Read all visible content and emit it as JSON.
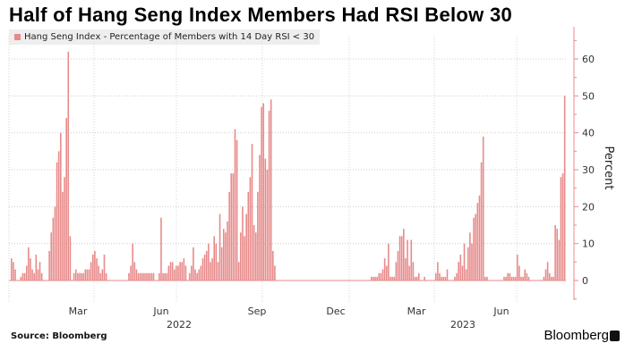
{
  "chart_data": {
    "type": "bar",
    "title": "Half of Hang Seng Index Members Had RSI Below 30",
    "legend": "Hang Seng Index - Percentage of Members with 14 Day RSI < 30",
    "ylabel": "Percent",
    "ylim": [
      -5,
      68
    ],
    "yticks": [
      "0",
      "10",
      "20",
      "30",
      "40",
      "50",
      "60"
    ],
    "ytick_values": [
      0,
      10,
      20,
      30,
      40,
      50,
      60
    ],
    "xticks": [
      "Mar",
      "Jun",
      "Sep",
      "Dec",
      "Mar",
      "Jun"
    ],
    "year_labels": [
      "2022",
      "2023"
    ],
    "color": "#e88a8a",
    "x_start": "2022-01",
    "x_end": "2023-08",
    "values": [
      6,
      5,
      3,
      0,
      0,
      1,
      2,
      2,
      4,
      9,
      6,
      3,
      2,
      7,
      3,
      5,
      2,
      0,
      0,
      0,
      8,
      13,
      17,
      20,
      32,
      35,
      40,
      24,
      28,
      44,
      62,
      12,
      0,
      2,
      3,
      2,
      2,
      2,
      2,
      3,
      3,
      3,
      5,
      7,
      8,
      6,
      4,
      2,
      3,
      7,
      2,
      0,
      0,
      0,
      0,
      0,
      0,
      0,
      0,
      0,
      0,
      0,
      2,
      4,
      10,
      5,
      3,
      2,
      2,
      2,
      2,
      2,
      2,
      2,
      2,
      2,
      0,
      0,
      2,
      17,
      2,
      2,
      2,
      4,
      5,
      5,
      3,
      4,
      4,
      5,
      5,
      6,
      4,
      0,
      2,
      4,
      9,
      3,
      2,
      3,
      4,
      6,
      7,
      8,
      10,
      5,
      6,
      12,
      10,
      5,
      18,
      9,
      14,
      13,
      16,
      24,
      29,
      29,
      41,
      38,
      5,
      13,
      20,
      12,
      18,
      24,
      28,
      37,
      15,
      13,
      24,
      34,
      47,
      48,
      33,
      30,
      46,
      49,
      8,
      4,
      0,
      0,
      0,
      0,
      0,
      0,
      0,
      0,
      0,
      0,
      0,
      0,
      0,
      0,
      0,
      0,
      0,
      0,
      0,
      0,
      0,
      0,
      0,
      0,
      0,
      0,
      0,
      0,
      0,
      0,
      0,
      0,
      0,
      0,
      0,
      0,
      0,
      0,
      0,
      0,
      0,
      0,
      0,
      0,
      0,
      0,
      0,
      0,
      0,
      0,
      1,
      1,
      1,
      1,
      2,
      2,
      3,
      6,
      4,
      10,
      1,
      1,
      1,
      5,
      8,
      12,
      12,
      14,
      6,
      11,
      4,
      11,
      5,
      1,
      1,
      2,
      0,
      0,
      1,
      0,
      0,
      0,
      0,
      0,
      2,
      5,
      2,
      1,
      1,
      1,
      3,
      0,
      0,
      0,
      1,
      2,
      5,
      7,
      4,
      10,
      3,
      9,
      13,
      10,
      17,
      18,
      21,
      23,
      32,
      39,
      1,
      1,
      0,
      0,
      0,
      0,
      0,
      0,
      0,
      0,
      1,
      1,
      2,
      2,
      1,
      1,
      1,
      7,
      4,
      1,
      1,
      3,
      2,
      1,
      0,
      0,
      0,
      0,
      0,
      0,
      0,
      1,
      3,
      5,
      2,
      1,
      1,
      15,
      14,
      11,
      28,
      29,
      50
    ]
  },
  "footer": {
    "source": "Source: Bloomberg",
    "brand": "Bloomberg"
  }
}
